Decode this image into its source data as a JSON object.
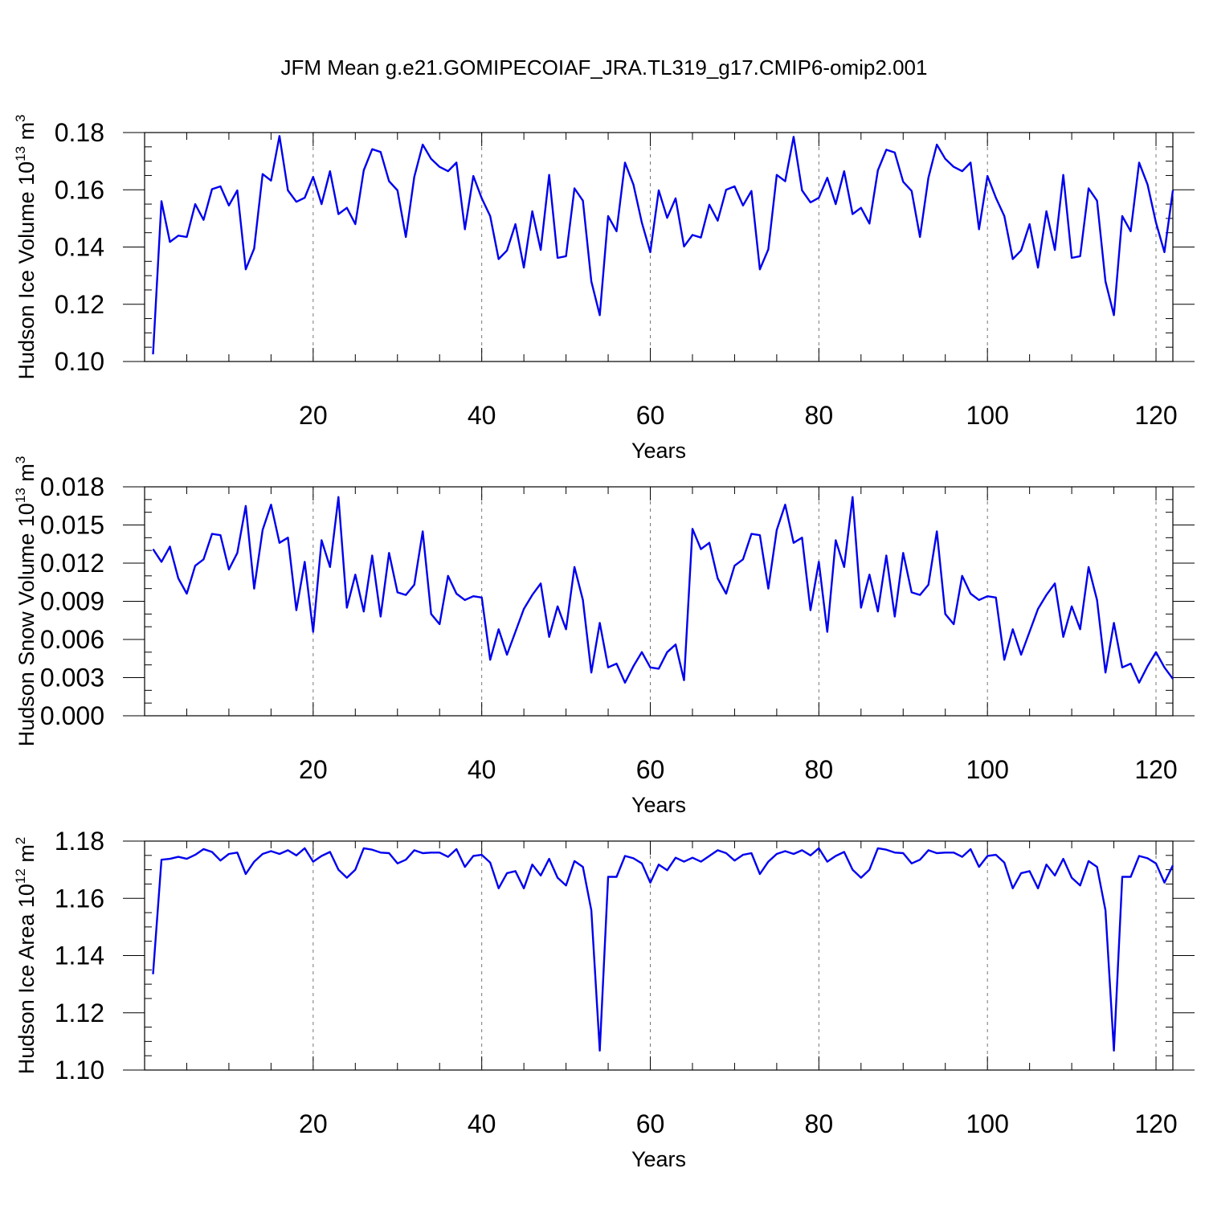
{
  "title": "JFM Mean g.e21.GOMIPECOIAF_JRA.TL319_g17.CMIP6-omip2.001",
  "chart_data": [
    {
      "type": "line",
      "id": "ice-volume",
      "ylabel_main": "Hudson Ice Volume 10",
      "ylabel_exp": "13",
      "ylabel_unit": " m",
      "ylabel_unit_exp": "3",
      "xlabel": "Years",
      "xlim": [
        0,
        122
      ],
      "ylim": [
        0.1,
        0.18
      ],
      "xticks": [
        20,
        40,
        60,
        80,
        100,
        120
      ],
      "xtick_labels": [
        "20",
        "40",
        "60",
        "80",
        "100",
        "120"
      ],
      "yticks": [
        0.1,
        0.12,
        0.14,
        0.16,
        0.18
      ],
      "ytick_labels": [
        "0.10",
        "0.12",
        "0.14",
        "0.16",
        "0.18"
      ],
      "ytick_minor_step": 0.005,
      "line_color": "#0000ee",
      "x": [
        1,
        2,
        3,
        4,
        5,
        6,
        7,
        8,
        9,
        10,
        11,
        12,
        13,
        14,
        15,
        16,
        17,
        18,
        19,
        20,
        21,
        22,
        23,
        24,
        25,
        26,
        27,
        28,
        29,
        30,
        31,
        32,
        33,
        34,
        35,
        36,
        37,
        38,
        39,
        40,
        41,
        42,
        43,
        44,
        45,
        46,
        47,
        48,
        49,
        50,
        51,
        52,
        53,
        54,
        55,
        56,
        57,
        58,
        59,
        60,
        61,
        62,
        63,
        64,
        65,
        66,
        67,
        68,
        69,
        70,
        71,
        72,
        73,
        74,
        75,
        76,
        77,
        78,
        79,
        80,
        81,
        82,
        83,
        84,
        85,
        86,
        87,
        88,
        89,
        90,
        91,
        92,
        93,
        94,
        95,
        96,
        97,
        98,
        99,
        100,
        101,
        102,
        103,
        104,
        105,
        106,
        107,
        108,
        109,
        110,
        111,
        112,
        113,
        114,
        115,
        116,
        117,
        118,
        119,
        120,
        121,
        122
      ],
      "values": [
        0.1025,
        0.156,
        0.1418,
        0.144,
        0.1435,
        0.155,
        0.1495,
        0.1602,
        0.1612,
        0.1545,
        0.1598,
        0.1322,
        0.1395,
        0.1655,
        0.1632,
        0.1788,
        0.1598,
        0.1558,
        0.1572,
        0.1645,
        0.155,
        0.1665,
        0.1515,
        0.1537,
        0.148,
        0.1668,
        0.1742,
        0.1732,
        0.163,
        0.1598,
        0.1435,
        0.1645,
        0.1758,
        0.1708,
        0.168,
        0.1665,
        0.1695,
        0.1462,
        0.1648,
        0.157,
        0.1508,
        0.1358,
        0.1388,
        0.148,
        0.1328,
        0.1525,
        0.139,
        0.1652,
        0.1362,
        0.1368,
        0.1605,
        0.1562,
        0.128,
        0.1162,
        0.1508,
        0.1455,
        0.1695,
        0.1618,
        0.1485,
        0.1382,
        0.1598,
        0.1502,
        0.157,
        0.1402,
        0.1442,
        0.1433,
        0.1548,
        0.1492,
        0.16,
        0.1612,
        0.1545,
        0.1596,
        0.1322,
        0.1392,
        0.1652,
        0.163,
        0.1785,
        0.1598,
        0.1556,
        0.1572,
        0.1642,
        0.155,
        0.1665,
        0.1515,
        0.1537,
        0.1482,
        0.1668,
        0.174,
        0.173,
        0.1628,
        0.1596,
        0.1435,
        0.1642,
        0.1758,
        0.1708,
        0.168,
        0.1665,
        0.1695,
        0.1462,
        0.1648,
        0.1572,
        0.1508,
        0.1358,
        0.1388,
        0.148,
        0.1328,
        0.1525,
        0.139,
        0.1652,
        0.1362,
        0.1368,
        0.1605,
        0.1562,
        0.128,
        0.1162,
        0.1508,
        0.1455,
        0.1695,
        0.1618,
        0.1485,
        0.1382,
        0.1598
      ]
    },
    {
      "type": "line",
      "id": "snow-volume",
      "ylabel_main": "Hudson Snow Volume 10",
      "ylabel_exp": "13",
      "ylabel_unit": " m",
      "ylabel_unit_exp": "3",
      "xlabel": "Years",
      "xlim": [
        0,
        122
      ],
      "ylim": [
        0.0,
        0.018
      ],
      "xticks": [
        20,
        40,
        60,
        80,
        100,
        120
      ],
      "xtick_labels": [
        "20",
        "40",
        "60",
        "80",
        "100",
        "120"
      ],
      "yticks": [
        0.0,
        0.003,
        0.006,
        0.009,
        0.012,
        0.015,
        0.018
      ],
      "ytick_labels": [
        "0.000",
        "0.003",
        "0.006",
        "0.009",
        "0.012",
        "0.015",
        "0.018"
      ],
      "ytick_minor_step": 0.001,
      "line_color": "#0000ee",
      "x": [
        1,
        2,
        3,
        4,
        5,
        6,
        7,
        8,
        9,
        10,
        11,
        12,
        13,
        14,
        15,
        16,
        17,
        18,
        19,
        20,
        21,
        22,
        23,
        24,
        25,
        26,
        27,
        28,
        29,
        30,
        31,
        32,
        33,
        34,
        35,
        36,
        37,
        38,
        39,
        40,
        41,
        42,
        43,
        44,
        45,
        46,
        47,
        48,
        49,
        50,
        51,
        52,
        53,
        54,
        55,
        56,
        57,
        58,
        59,
        60,
        61,
        62,
        63,
        64,
        65,
        66,
        67,
        68,
        69,
        70,
        71,
        72,
        73,
        74,
        75,
        76,
        77,
        78,
        79,
        80,
        81,
        82,
        83,
        84,
        85,
        86,
        87,
        88,
        89,
        90,
        91,
        92,
        93,
        94,
        95,
        96,
        97,
        98,
        99,
        100,
        101,
        102,
        103,
        104,
        105,
        106,
        107,
        108,
        109,
        110,
        111,
        112,
        113,
        114,
        115,
        116,
        117,
        118,
        119,
        120,
        121,
        122
      ],
      "values": [
        0.0131,
        0.0121,
        0.0133,
        0.0108,
        0.0096,
        0.0118,
        0.0123,
        0.0143,
        0.0142,
        0.0115,
        0.0128,
        0.0165,
        0.01,
        0.0146,
        0.0166,
        0.0136,
        0.014,
        0.0083,
        0.0121,
        0.0066,
        0.0138,
        0.0117,
        0.0172,
        0.0085,
        0.0111,
        0.0082,
        0.0126,
        0.0078,
        0.0128,
        0.0097,
        0.0095,
        0.0103,
        0.0145,
        0.008,
        0.0072,
        0.011,
        0.0096,
        0.0091,
        0.0094,
        0.0093,
        0.0044,
        0.0068,
        0.0048,
        0.0066,
        0.0084,
        0.0095,
        0.0104,
        0.0062,
        0.0086,
        0.0068,
        0.0117,
        0.0091,
        0.0034,
        0.0073,
        0.0038,
        0.0041,
        0.0026,
        0.0039,
        0.005,
        0.0038,
        0.0037,
        0.005,
        0.0056,
        0.0028,
        0.0147,
        0.0131,
        0.0136,
        0.0108,
        0.0096,
        0.0118,
        0.0123,
        0.0143,
        0.0142,
        0.01,
        0.0146,
        0.0166,
        0.0136,
        0.014,
        0.0083,
        0.0121,
        0.0066,
        0.0138,
        0.0117,
        0.0172,
        0.0085,
        0.0111,
        0.0082,
        0.0126,
        0.0078,
        0.0128,
        0.0097,
        0.0095,
        0.0103,
        0.0145,
        0.008,
        0.0072,
        0.011,
        0.0096,
        0.0091,
        0.0094,
        0.0093,
        0.0044,
        0.0068,
        0.0048,
        0.0066,
        0.0084,
        0.0095,
        0.0104,
        0.0062,
        0.0086,
        0.0068,
        0.0117,
        0.0091,
        0.0034,
        0.0073,
        0.0038,
        0.0041,
        0.0026,
        0.0039,
        0.005,
        0.0038,
        0.0029
      ]
    },
    {
      "type": "line",
      "id": "ice-area",
      "ylabel_main": "Hudson Ice Area 10",
      "ylabel_exp": "12",
      "ylabel_unit": " m",
      "ylabel_unit_exp": "2",
      "xlabel": "Years",
      "xlim": [
        0,
        122
      ],
      "ylim": [
        1.1,
        1.18
      ],
      "xticks": [
        20,
        40,
        60,
        80,
        100,
        120
      ],
      "xtick_labels": [
        "20",
        "40",
        "60",
        "80",
        "100",
        "120"
      ],
      "yticks": [
        1.1,
        1.12,
        1.14,
        1.16,
        1.18
      ],
      "ytick_labels": [
        "1.10",
        "1.12",
        "1.14",
        "1.16",
        "1.18"
      ],
      "ytick_minor_step": 0.005,
      "line_color": "#0000ee",
      "x": [
        1,
        2,
        3,
        4,
        5,
        6,
        7,
        8,
        9,
        10,
        11,
        12,
        13,
        14,
        15,
        16,
        17,
        18,
        19,
        20,
        21,
        22,
        23,
        24,
        25,
        26,
        27,
        28,
        29,
        30,
        31,
        32,
        33,
        34,
        35,
        36,
        37,
        38,
        39,
        40,
        41,
        42,
        43,
        44,
        45,
        46,
        47,
        48,
        49,
        50,
        51,
        52,
        53,
        54,
        55,
        56,
        57,
        58,
        59,
        60,
        61,
        62,
        63,
        64,
        65,
        66,
        67,
        68,
        69,
        70,
        71,
        72,
        73,
        74,
        75,
        76,
        77,
        78,
        79,
        80,
        81,
        82,
        83,
        84,
        85,
        86,
        87,
        88,
        89,
        90,
        91,
        92,
        93,
        94,
        95,
        96,
        97,
        98,
        99,
        100,
        101,
        102,
        103,
        104,
        105,
        106,
        107,
        108,
        109,
        110,
        111,
        112,
        113,
        114,
        115,
        116,
        117,
        118,
        119,
        120,
        121,
        122
      ],
      "values": [
        1.1335,
        1.1735,
        1.1738,
        1.1745,
        1.1738,
        1.1752,
        1.1772,
        1.1762,
        1.1732,
        1.1755,
        1.176,
        1.1685,
        1.1728,
        1.1755,
        1.1765,
        1.1755,
        1.1768,
        1.175,
        1.1775,
        1.1728,
        1.1748,
        1.1762,
        1.17,
        1.1672,
        1.17,
        1.1775,
        1.177,
        1.176,
        1.1758,
        1.1722,
        1.1735,
        1.1768,
        1.1758,
        1.176,
        1.176,
        1.1745,
        1.1772,
        1.171,
        1.1748,
        1.1752,
        1.1725,
        1.1635,
        1.1688,
        1.1695,
        1.1635,
        1.1718,
        1.168,
        1.1738,
        1.1672,
        1.1645,
        1.173,
        1.171,
        1.1558,
        1.1068,
        1.1675,
        1.1675,
        1.1748,
        1.174,
        1.1722,
        1.1655,
        1.1718,
        1.1698,
        1.1742,
        1.1728,
        1.1742,
        1.1728,
        1.1748,
        1.1768,
        1.1758,
        1.1732,
        1.1752,
        1.1758,
        1.1685,
        1.1728,
        1.1755,
        1.1765,
        1.1755,
        1.1768,
        1.175,
        1.1775,
        1.1728,
        1.1748,
        1.1762,
        1.17,
        1.1672,
        1.17,
        1.1775,
        1.177,
        1.176,
        1.1758,
        1.1722,
        1.1735,
        1.1768,
        1.1758,
        1.176,
        1.176,
        1.1745,
        1.1772,
        1.171,
        1.1748,
        1.1752,
        1.1725,
        1.1635,
        1.1688,
        1.1695,
        1.1635,
        1.1718,
        1.168,
        1.1738,
        1.1672,
        1.1645,
        1.173,
        1.171,
        1.1558,
        1.1068,
        1.1675,
        1.1675,
        1.1748,
        1.174,
        1.1722,
        1.1655,
        1.1715
      ]
    }
  ]
}
